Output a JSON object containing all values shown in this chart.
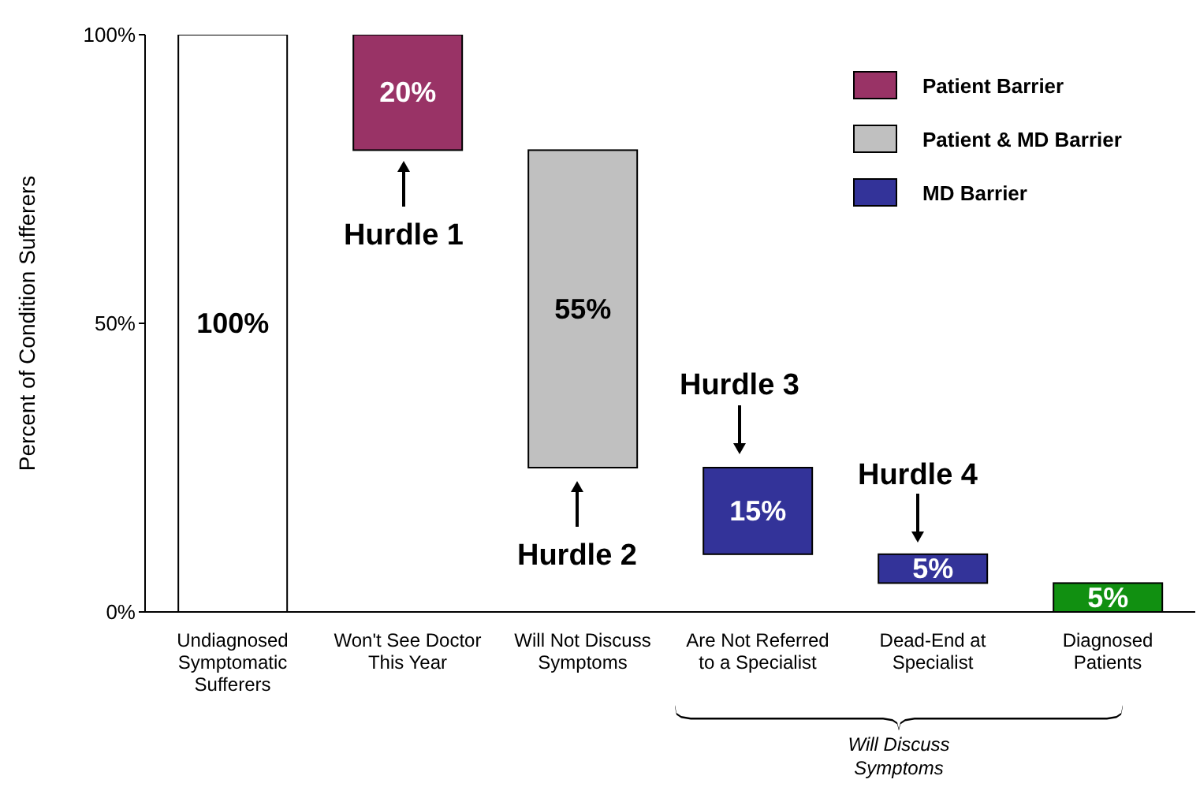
{
  "chart_data": {
    "type": "bar",
    "ylabel": "Percent of Condition Sufferers",
    "categories": [
      "Undiagnosed Symptomatic Sufferers",
      "Won't See Doctor This Year",
      "Will Not Discuss Symptoms",
      "Are Not Referred to a Specialist",
      "Dead-End at Specialist",
      "Diagnosed Patients"
    ],
    "series": [
      {
        "color": "#ffffff",
        "base": [
          0,
          null,
          null,
          null,
          null,
          null
        ],
        "values": [
          100,
          null,
          null,
          null,
          null,
          null
        ],
        "value_labels": [
          "100%",
          null,
          null,
          null,
          null,
          null
        ]
      },
      {
        "name": "Patient Barrier",
        "color": "#993366",
        "base": [
          null,
          80,
          null,
          null,
          null,
          null
        ],
        "values": [
          null,
          20,
          null,
          null,
          null,
          null
        ],
        "value_labels": [
          null,
          "20%",
          null,
          null,
          null,
          null
        ]
      },
      {
        "name": "Patient & MD Barrier",
        "color": "#c0c0c0",
        "base": [
          null,
          null,
          25,
          null,
          null,
          null
        ],
        "values": [
          null,
          null,
          55,
          null,
          null,
          null
        ],
        "value_labels": [
          null,
          null,
          "55%",
          null,
          null,
          null
        ]
      },
      {
        "name": "MD Barrier",
        "color": "#333399",
        "base": [
          null,
          null,
          null,
          10,
          5,
          null
        ],
        "values": [
          null,
          null,
          null,
          15,
          5,
          null
        ],
        "value_labels": [
          null,
          null,
          null,
          "15%",
          "5%",
          null
        ]
      },
      {
        "color": "#119011",
        "base": [
          null,
          null,
          null,
          null,
          null,
          0
        ],
        "values": [
          null,
          null,
          null,
          null,
          null,
          5
        ],
        "value_labels": [
          null,
          null,
          null,
          null,
          null,
          "5%"
        ]
      }
    ],
    "ylim": [
      0,
      100
    ],
    "yticks": [
      {
        "value": 0,
        "label": "0%"
      },
      {
        "value": 50,
        "label": "50%"
      },
      {
        "value": 100,
        "label": "100%"
      }
    ],
    "grid": false,
    "legend": "top right",
    "annotations": [
      "Hurdle 1",
      "Hurdle 2",
      "Hurdle 3",
      "Hurdle 4",
      "Will Discuss Symptoms"
    ]
  }
}
